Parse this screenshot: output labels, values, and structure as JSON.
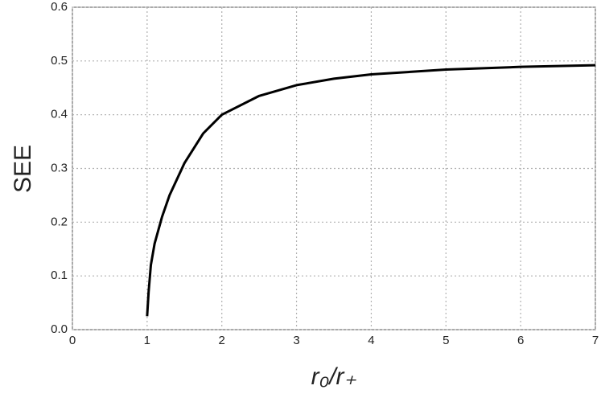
{
  "chart_data": {
    "type": "line",
    "xlabel": "r₀/r₊",
    "ylabel": "SEE",
    "x": [
      1,
      1.02,
      1.05,
      1.1,
      1.2,
      1.3,
      1.5,
      1.75,
      2,
      2.5,
      3,
      3.5,
      4,
      5,
      6,
      7
    ],
    "series": [
      {
        "color": "#000000",
        "values": [
          0.025,
          0.07,
          0.12,
          0.16,
          0.21,
          0.25,
          0.31,
          0.365,
          0.4,
          0.435,
          0.455,
          0.467,
          0.475,
          0.484,
          0.489,
          0.492
        ]
      }
    ],
    "xlim": [
      0,
      7
    ],
    "xticks": [
      0,
      1,
      2,
      3,
      4,
      5,
      6,
      7
    ],
    "ylim": [
      0,
      0.6
    ],
    "yticks": [
      {
        "value": 0,
        "label": "0.0"
      },
      0.1,
      0.2,
      0.3,
      0.4,
      0.5,
      0.6
    ],
    "grid": true
  }
}
